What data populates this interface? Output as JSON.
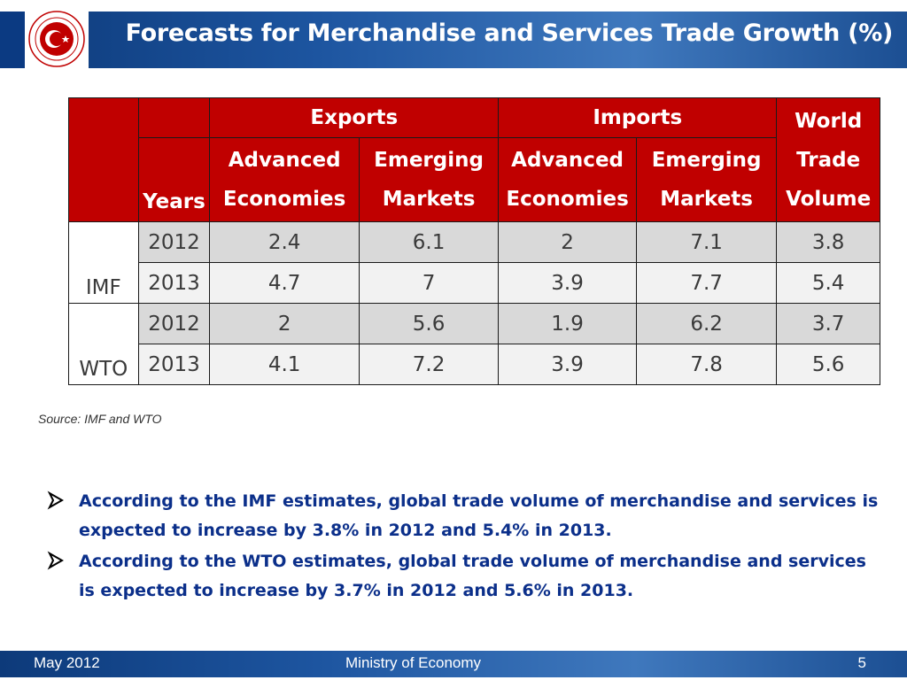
{
  "header": {
    "title": "Forecasts for Merchandise and Services Trade Growth (%)"
  },
  "table": {
    "top_headers": {
      "exports": "Exports",
      "imports": "Imports",
      "world": [
        "World",
        "Trade",
        "Volume"
      ]
    },
    "sub_headers": {
      "years": "Years",
      "exp_adv": [
        "Advanced",
        "Economies"
      ],
      "exp_em": [
        "Emerging",
        "Markets"
      ],
      "imp_adv": [
        "Advanced",
        "Economies"
      ],
      "imp_em": [
        "Emerging",
        "Markets"
      ]
    },
    "groups": [
      {
        "label": "IMF",
        "rows": [
          {
            "year": "2012",
            "values": [
              "2.4",
              "6.1",
              "2",
              "7.1",
              "3.8"
            ]
          },
          {
            "year": "2013",
            "values": [
              "4.7",
              "7",
              "3.9",
              "7.7",
              "5.4"
            ]
          }
        ]
      },
      {
        "label": "WTO",
        "rows": [
          {
            "year": "2012",
            "values": [
              "2",
              "5.6",
              "1.9",
              "6.2",
              "3.7"
            ]
          },
          {
            "year": "2013",
            "values": [
              "4.1",
              "7.2",
              "3.9",
              "7.8",
              "5.6"
            ]
          }
        ]
      }
    ]
  },
  "source": "Source: IMF and WTO",
  "bullets": [
    " According to the IMF estimates, global trade volume of merchandise and services is expected to increase by 3.8% in 2012 and 5.4% in 2013.",
    "According to the WTO estimates, global trade volume of merchandise and services is expected to increase by 3.7% in 2012 and 5.6% in 2013."
  ],
  "footer": {
    "date": "May 2012",
    "org": "Ministry of Economy",
    "page": "5"
  },
  "icons": {
    "logo": "republic-of-turkey-ministry-of-economy-seal",
    "bullet": "arrow-bullet-icon"
  },
  "colors": {
    "header_red": "#c00000",
    "banner_blue": "#1d55a0",
    "bullet_text": "#0b2f8a"
  }
}
